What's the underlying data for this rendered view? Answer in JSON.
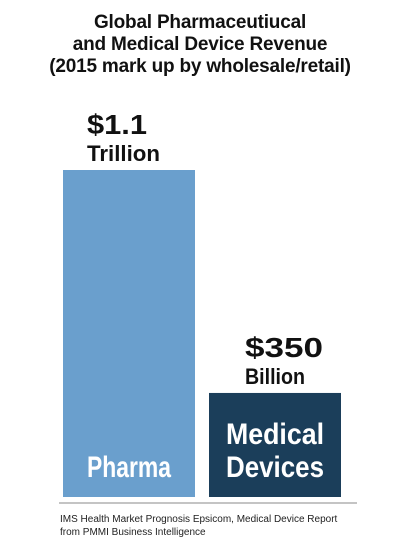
{
  "title_lines": [
    "Global Pharmaceutiucal",
    "and Medical Device Revenue",
    "(2015 mark up by wholesale/retail)"
  ],
  "source_lines": [
    "IMS Health Market Prognosis Epsicom, Medical Device Report",
    "from PMMI Business Intelligence"
  ],
  "chart_data": {
    "type": "bar",
    "title": "Global Pharmaceutiucal and Medical Device Revenue (2015 mark up by wholesale/retail)",
    "unit": "USD",
    "categories": [
      "Pharma",
      "Medical Devices"
    ],
    "values": [
      1100000000000,
      350000000000
    ],
    "value_labels": [
      [
        "$1.1",
        "Trillion"
      ],
      [
        "$350",
        "Billion"
      ]
    ],
    "category_label_lines": [
      [
        "Pharma"
      ],
      [
        "Medical",
        "Devices"
      ]
    ],
    "colors": [
      "#6a9fcd",
      "#1b3e5a"
    ],
    "ylim": [
      0,
      1100000000000
    ],
    "grid": false,
    "legend": "none"
  }
}
